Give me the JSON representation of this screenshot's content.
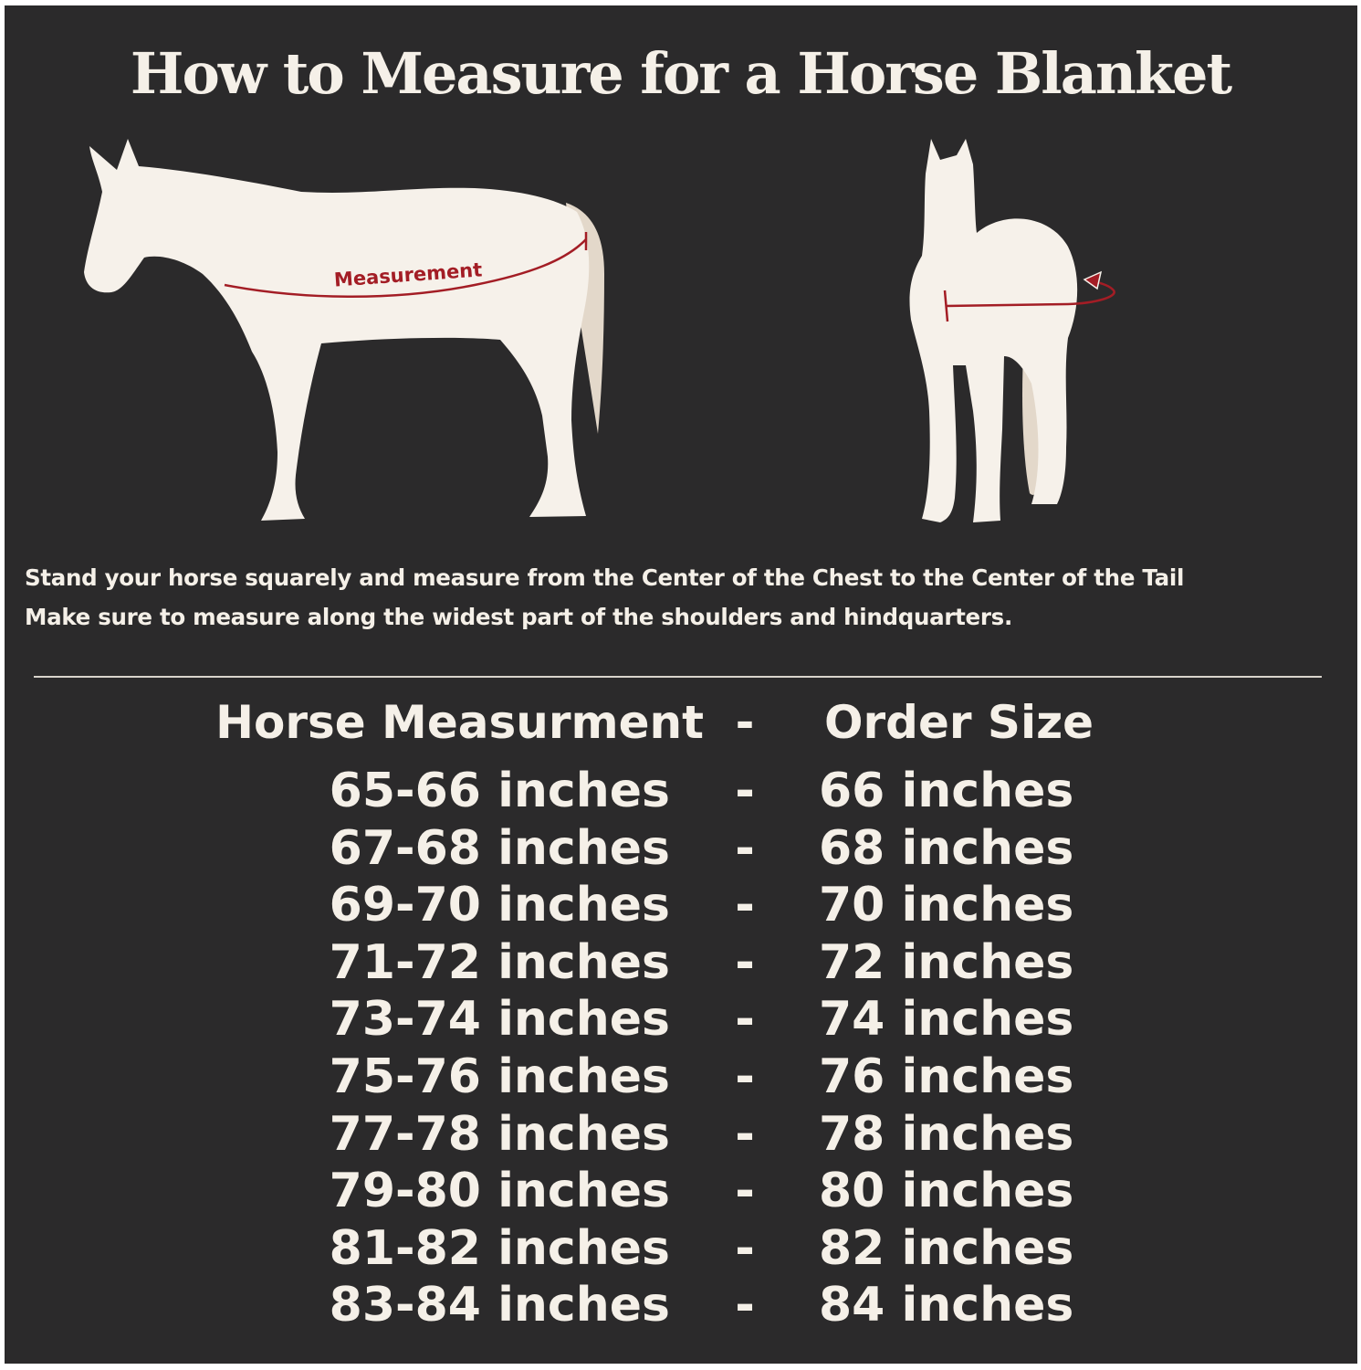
{
  "title": "How to Measure for a Horse Blanket",
  "diagram": {
    "side_label": "Measurement",
    "colors": {
      "background": "#2b2a2b",
      "horse": "#f6f1ea",
      "tail": "#e3d8ca",
      "measure_line": "#a31d25"
    }
  },
  "instructions": [
    "Stand your horse squarely and measure from the Center of the Chest to the Center of the Tail",
    "Make sure to measure along the widest part of the shoulders and hindquarters."
  ],
  "table": {
    "header": {
      "measurement": "Horse Measurment",
      "separator": "-",
      "size": "Order Size"
    },
    "rows": [
      {
        "measurement": "65-66 inches",
        "separator": "-",
        "size": "66 inches"
      },
      {
        "measurement": "67-68 inches",
        "separator": "-",
        "size": "68 inches"
      },
      {
        "measurement": "69-70 inches",
        "separator": "-",
        "size": "70 inches"
      },
      {
        "measurement": "71-72 inches",
        "separator": "-",
        "size": "72 inches"
      },
      {
        "measurement": "73-74 inches",
        "separator": "-",
        "size": "74 inches"
      },
      {
        "measurement": "75-76 inches",
        "separator": "-",
        "size": "76 inches"
      },
      {
        "measurement": "77-78 inches",
        "separator": "-",
        "size": "78 inches"
      },
      {
        "measurement": "79-80 inches",
        "separator": "-",
        "size": "80 inches"
      },
      {
        "measurement": "81-82 inches",
        "separator": "-",
        "size": "82 inches"
      },
      {
        "measurement": "83-84 inches",
        "separator": "-",
        "size": "84 inches"
      }
    ]
  }
}
